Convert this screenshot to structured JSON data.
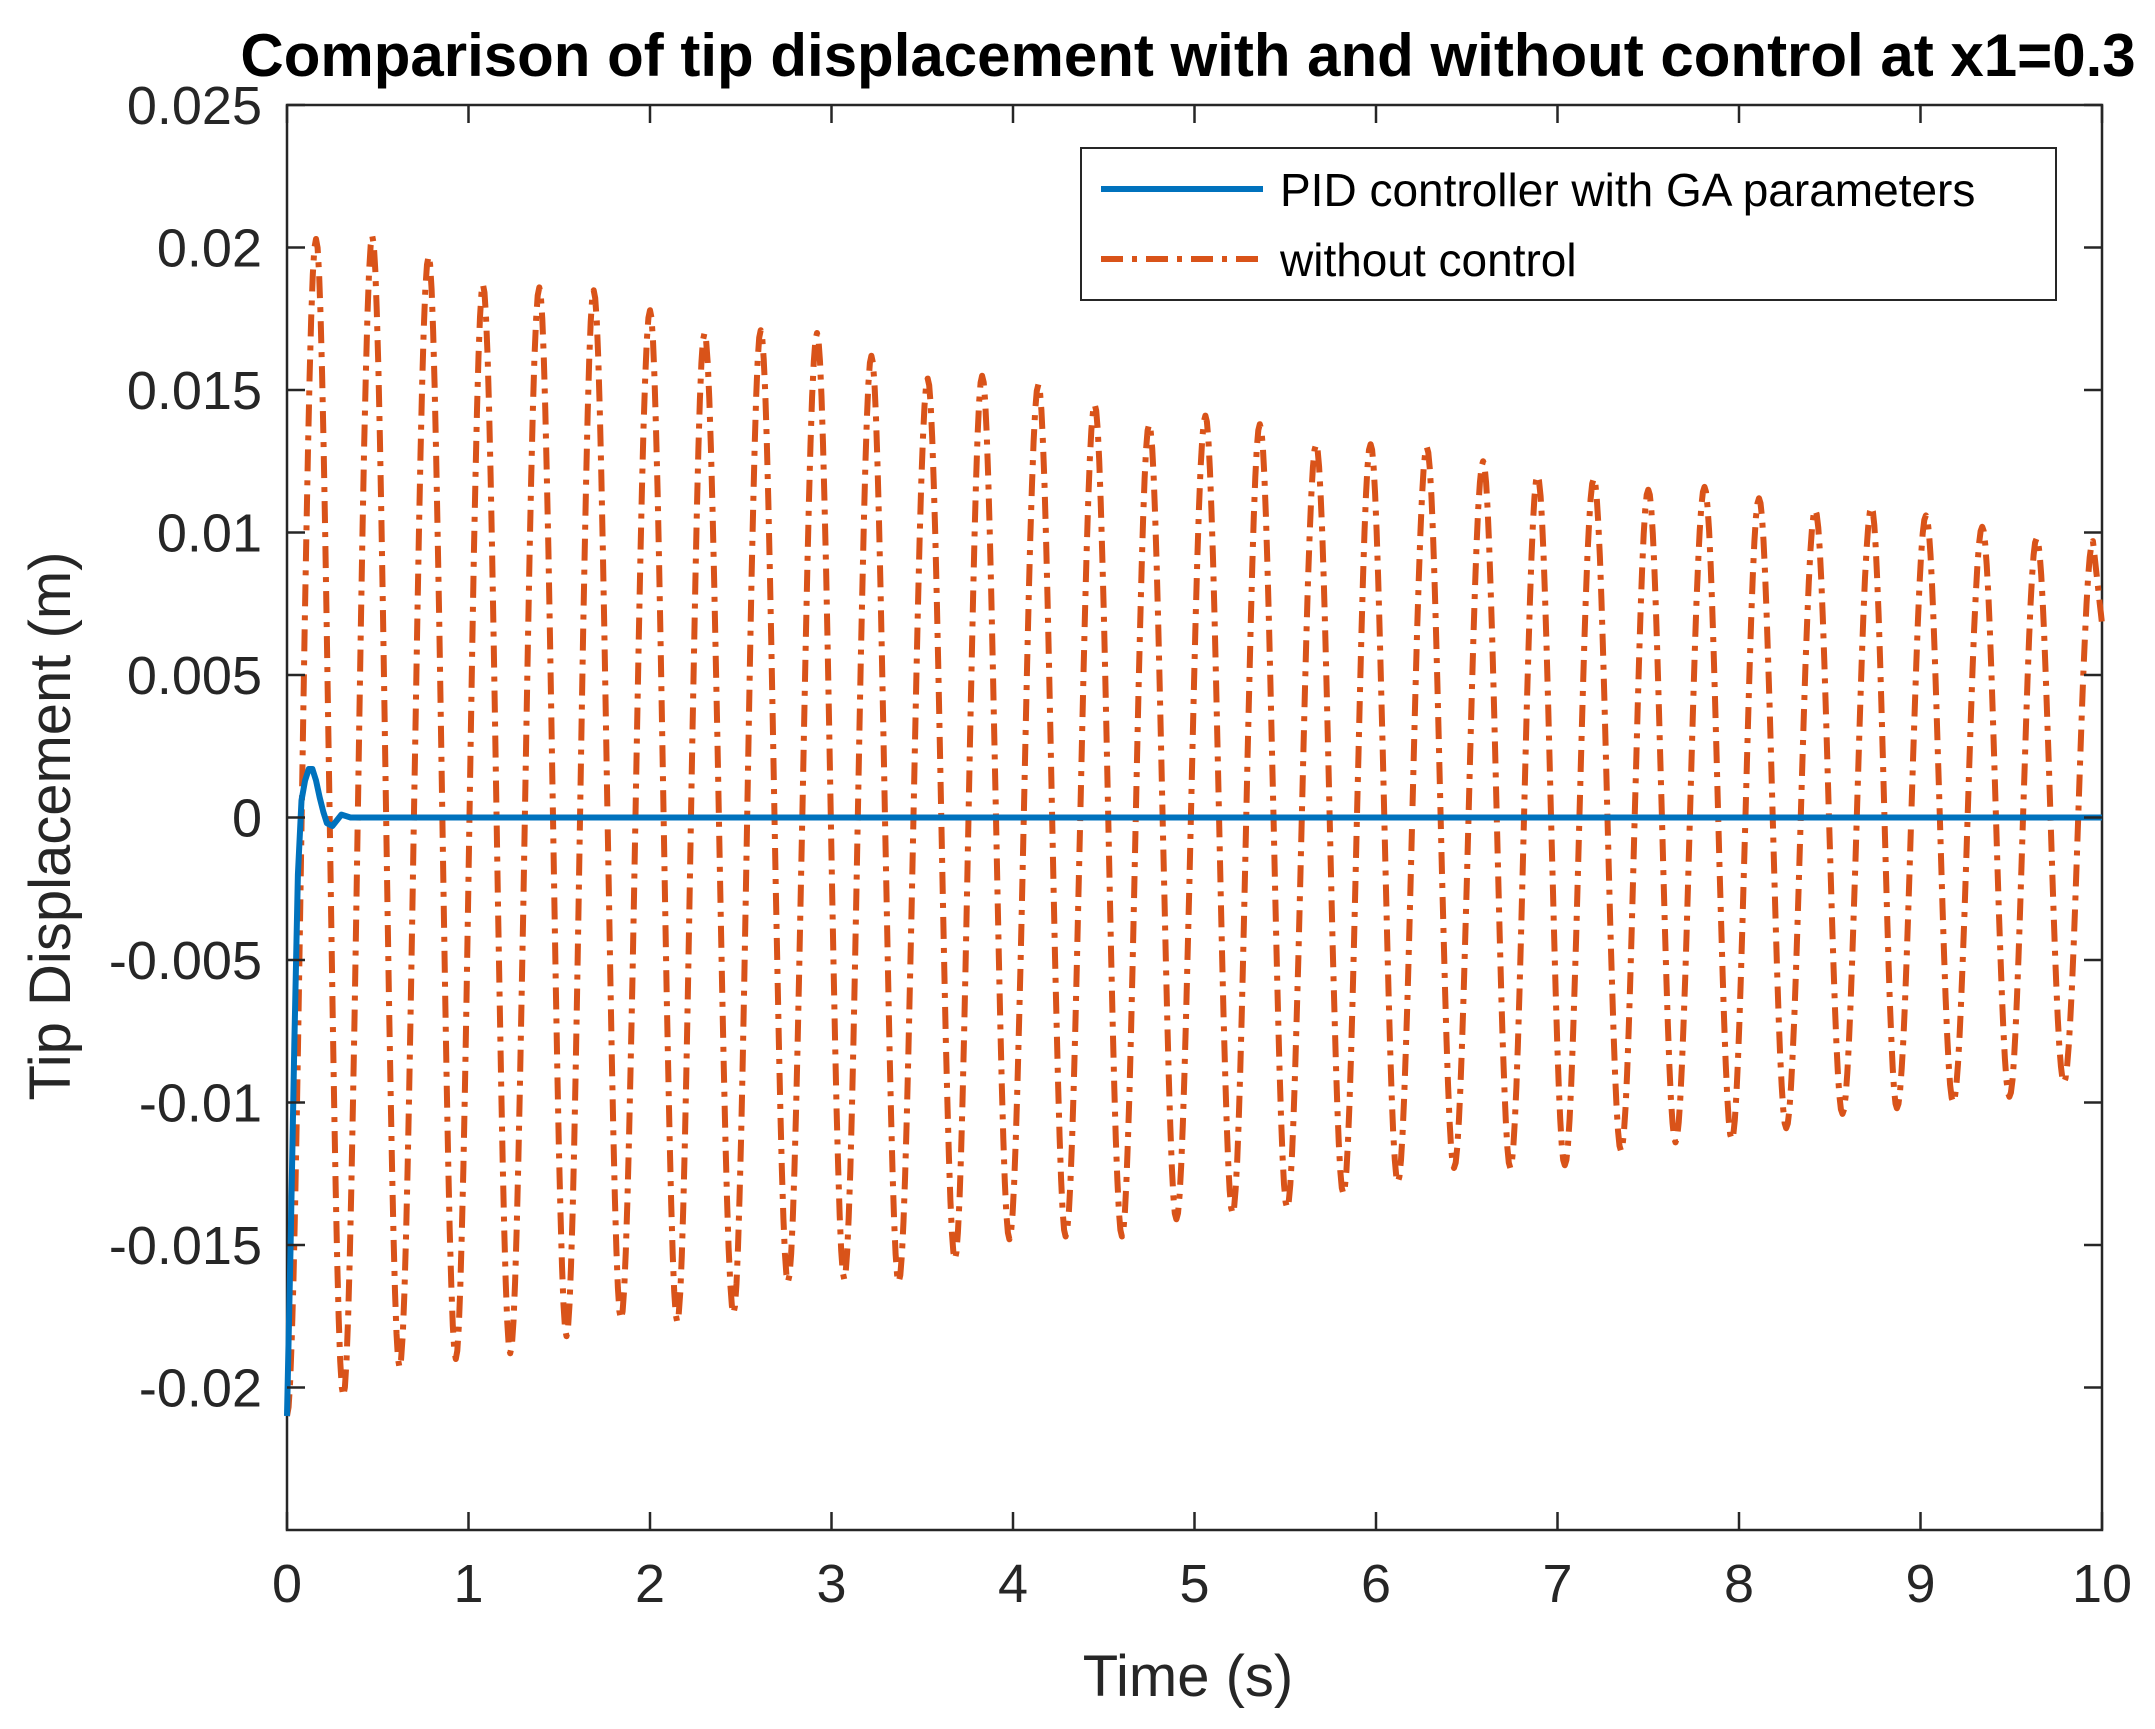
{
  "chart_data": {
    "type": "line",
    "title": "Comparison of tip displacement with and without control at x1=0.3",
    "xlabel": "Time (s)",
    "ylabel": "Tip Displacement (m)",
    "xlim": [
      0,
      10
    ],
    "ylim": [
      -0.025,
      0.025
    ],
    "grid": false,
    "legend_position": "top-right",
    "x_ticks": [
      0,
      1,
      2,
      3,
      4,
      5,
      6,
      7,
      8,
      9,
      10
    ],
    "x_tick_labels": [
      "0",
      "1",
      "2",
      "3",
      "4",
      "5",
      "6",
      "7",
      "8",
      "9",
      "10"
    ],
    "y_ticks": [
      0.025,
      0.02,
      0.015,
      0.01,
      0.005,
      0,
      -0.005,
      -0.01,
      -0.015,
      -0.02
    ],
    "y_tick_labels": [
      "0.025",
      "0.02",
      "0.015",
      "0.01",
      "0.005",
      "0",
      "-0.005",
      "-0.01",
      "-0.015",
      "-0.02"
    ],
    "series": [
      {
        "name": "PID controller with GA parameters",
        "color": "#0072BD",
        "style": "solid",
        "x": [
          0,
          0.02,
          0.04,
          0.06,
          0.08,
          0.1,
          0.12,
          0.14,
          0.16,
          0.18,
          0.2,
          0.22,
          0.25,
          0.3,
          0.35,
          0.4,
          0.5,
          10
        ],
        "y": [
          -0.021,
          -0.015,
          -0.008,
          -0.002,
          0.0006,
          0.0013,
          0.0017,
          0.0017,
          0.0013,
          0.0007,
          0.0002,
          -0.0002,
          -0.0003,
          0.0001,
          0,
          0,
          0,
          0
        ]
      },
      {
        "name": "without control",
        "color": "#D95319",
        "style": "dash-dot",
        "t_start": 0,
        "t_end": 10,
        "peak_times": [
          0.16,
          0.47,
          0.78,
          1.08,
          1.39,
          1.69,
          2.0,
          2.3,
          2.61,
          2.92,
          3.22,
          3.53,
          3.83,
          4.14,
          4.45,
          4.75,
          5.06,
          5.36,
          5.67,
          5.97,
          6.28,
          6.59,
          6.89,
          7.2,
          7.5,
          7.81,
          8.11,
          8.42,
          8.73,
          9.03,
          9.34,
          9.64,
          9.95
        ],
        "peak_values": [
          0.0203,
          0.0204,
          0.0197,
          0.0187,
          0.0186,
          0.0185,
          0.0178,
          0.017,
          0.0171,
          0.017,
          0.0162,
          0.0154,
          0.0155,
          0.0152,
          0.0145,
          0.0138,
          0.0141,
          0.0138,
          0.0131,
          0.0131,
          0.013,
          0.0125,
          0.012,
          0.0119,
          0.0115,
          0.0116,
          0.0112,
          0.0108,
          0.0109,
          0.0106,
          0.0102,
          0.0098,
          0.0097
        ],
        "trough_times": [
          0,
          0.31,
          0.62,
          0.93,
          1.23,
          1.54,
          1.84,
          2.15,
          2.46,
          2.76,
          3.07,
          3.37,
          3.68,
          3.98,
          4.29,
          4.6,
          4.9,
          5.21,
          5.51,
          5.82,
          6.12,
          6.43,
          6.74,
          7.04,
          7.35,
          7.65,
          7.96,
          8.26,
          8.57,
          8.87,
          9.18,
          9.49,
          9.79
        ],
        "trough_values": [
          -0.021,
          -0.0203,
          -0.0193,
          -0.019,
          -0.0188,
          -0.0182,
          -0.0176,
          -0.0177,
          -0.0174,
          -0.0163,
          -0.0162,
          -0.0163,
          -0.0155,
          -0.0148,
          -0.0147,
          -0.0147,
          -0.0141,
          -0.0139,
          -0.0137,
          -0.0132,
          -0.0128,
          -0.0123,
          -0.0123,
          -0.0122,
          -0.0117,
          -0.0114,
          -0.0113,
          -0.0109,
          -0.0104,
          -0.0102,
          -0.01,
          -0.0098,
          -0.0093
        ],
        "end_value": 0.0068
      }
    ]
  }
}
